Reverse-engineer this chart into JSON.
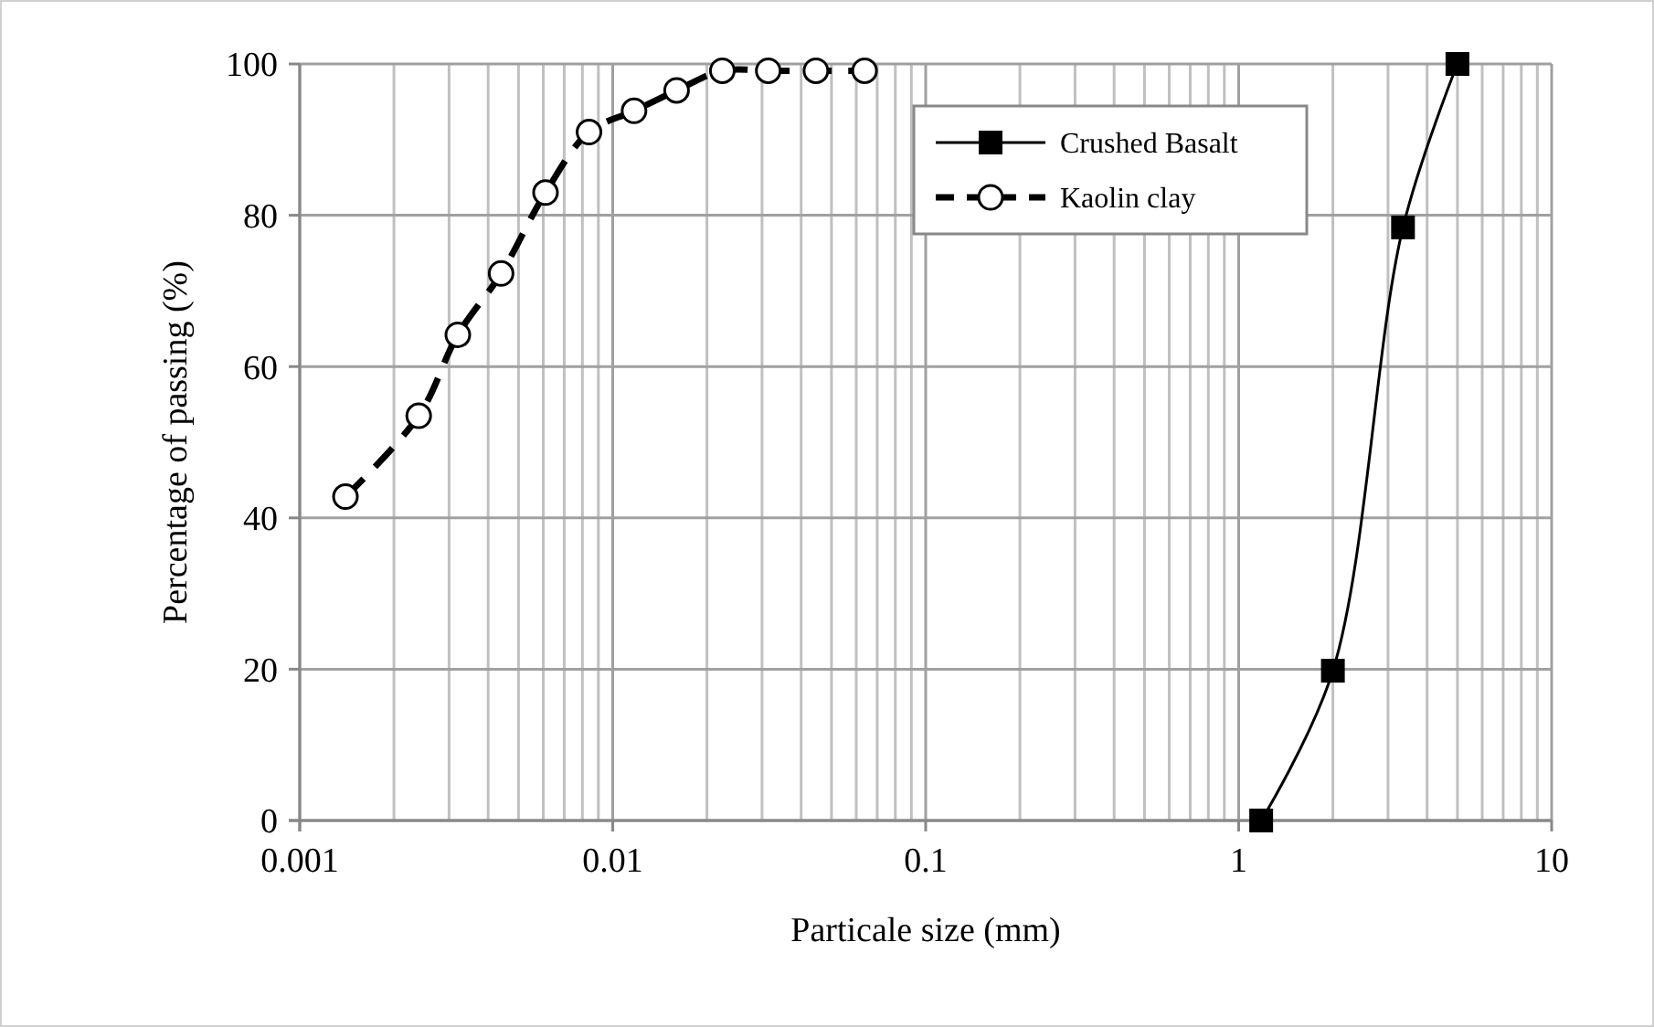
{
  "chart_data": {
    "type": "line",
    "xlabel": "Particale size (mm)",
    "ylabel": "Percentage of passing (%)",
    "log": "x",
    "xlim": [
      0.001,
      10
    ],
    "xticks": [
      0.001,
      0.01,
      0.1,
      1,
      10
    ],
    "ylim": [
      0,
      100
    ],
    "yticks": [
      0,
      20,
      40,
      60,
      80,
      100
    ],
    "grid": true,
    "legend": "top right",
    "series": [
      {
        "name": "Crushed Basalt",
        "color": "#000000",
        "marker": "square",
        "line_style": "solid",
        "x": [
          1.18,
          2,
          3.35,
          5
        ],
        "values": [
          0,
          19.8,
          78.4,
          100
        ]
      },
      {
        "name": "Kaolin clay",
        "color": "#000000",
        "marker": "circle",
        "line_style": "dashed",
        "x": [
          0.0014,
          0.0024,
          0.0032,
          0.0044,
          0.0061,
          0.0084,
          0.0117,
          0.016,
          0.0224,
          0.0314,
          0.0446,
          0.0638
        ],
        "values": [
          42.8,
          53.5,
          64.2,
          72.3,
          83,
          91,
          93.8,
          96.5,
          99.1,
          99.1,
          99.1,
          99.1
        ]
      }
    ]
  }
}
